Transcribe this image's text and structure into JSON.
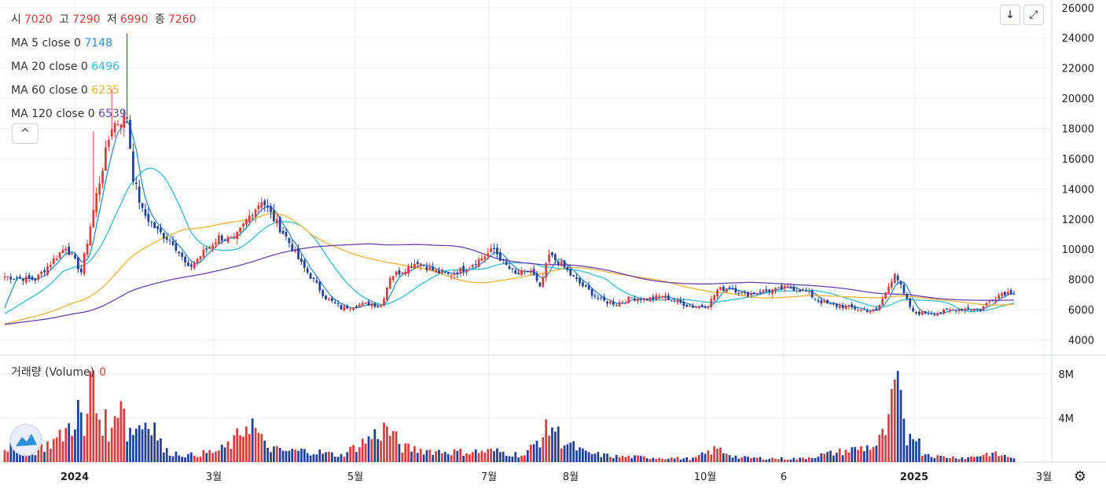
{
  "ohlc": {
    "open_label": "시",
    "open": "7020",
    "high_label": "고",
    "high": "7290",
    "low_label": "저",
    "low": "6990",
    "close_label": "종",
    "close": "7260"
  },
  "ma_legend": [
    {
      "label": "MA 5 close 0",
      "value": "7148",
      "color": "#2a8fdc"
    },
    {
      "label": "MA 20 close 0",
      "value": "6496",
      "color": "#2fbfd6"
    },
    {
      "label": "MA 60 close 0",
      "value": "6235",
      "color": "#f2b234"
    },
    {
      "label": "MA 120 close 0",
      "value": "6539",
      "color": "#6a3fb0"
    }
  ],
  "volume_legend": {
    "label": "거래량 (Volume)",
    "value": "0"
  },
  "buttons": {
    "collapse": "^",
    "download": "↓",
    "fullscreen": "⤢",
    "settings": "⚙"
  },
  "chart_data": {
    "type": "candlestick",
    "price_axis": {
      "ticks": [
        "26000",
        "24000",
        "22000",
        "20000",
        "18000",
        "16000",
        "14000",
        "12000",
        "10000",
        "8000",
        "6000",
        "4000"
      ],
      "ylim": [
        3300,
        26300
      ]
    },
    "volume_axis": {
      "ticks": [
        "8M",
        "4M"
      ],
      "ylim": [
        0,
        9000000
      ]
    },
    "x_tick_labels": [
      "2024",
      "3월",
      "5월",
      "7월",
      "8월",
      "10월",
      "6",
      "2025",
      "3월"
    ],
    "up_color": "#e03a3a",
    "down_color": "#1f3f9a",
    "ma_series": [
      {
        "name": "MA 5",
        "color": "#2a8fdc"
      },
      {
        "name": "MA 20",
        "color": "#2fbfd6"
      },
      {
        "name": "MA 60",
        "color": "#f2b234"
      },
      {
        "name": "MA 120",
        "color": "#6a3fb0"
      }
    ],
    "price_anchors_index_close": [
      [
        0,
        8200
      ],
      [
        10,
        8000
      ],
      [
        20,
        10200
      ],
      [
        25,
        8500
      ],
      [
        30,
        13600
      ],
      [
        35,
        18200
      ],
      [
        40,
        18800
      ],
      [
        42,
        14800
      ],
      [
        45,
        12500
      ],
      [
        50,
        11200
      ],
      [
        55,
        10500
      ],
      [
        60,
        8700
      ],
      [
        65,
        9800
      ],
      [
        70,
        10800
      ],
      [
        75,
        10600
      ],
      [
        80,
        12200
      ],
      [
        84,
        13300
      ],
      [
        88,
        12000
      ],
      [
        92,
        10800
      ],
      [
        97,
        9000
      ],
      [
        100,
        8200
      ],
      [
        105,
        6800
      ],
      [
        110,
        6100
      ],
      [
        115,
        6300
      ],
      [
        120,
        6400
      ],
      [
        123,
        6200
      ],
      [
        126,
        8200
      ],
      [
        130,
        8600
      ],
      [
        135,
        9200
      ],
      [
        140,
        8600
      ],
      [
        145,
        8300
      ],
      [
        150,
        8700
      ],
      [
        155,
        9300
      ],
      [
        160,
        10000
      ],
      [
        163,
        9100
      ],
      [
        167,
        8300
      ],
      [
        172,
        8600
      ],
      [
        175,
        7400
      ],
      [
        178,
        9600
      ],
      [
        182,
        9000
      ],
      [
        186,
        8100
      ],
      [
        190,
        7400
      ],
      [
        195,
        6600
      ],
      [
        200,
        6400
      ],
      [
        205,
        6800
      ],
      [
        210,
        6700
      ],
      [
        215,
        6900
      ],
      [
        220,
        6500
      ],
      [
        225,
        6200
      ],
      [
        230,
        6300
      ],
      [
        233,
        7300
      ],
      [
        237,
        7500
      ],
      [
        242,
        7000
      ],
      [
        247,
        7200
      ],
      [
        252,
        7300
      ],
      [
        257,
        7500
      ],
      [
        262,
        7200
      ],
      [
        266,
        6600
      ],
      [
        270,
        6300
      ],
      [
        275,
        6200
      ],
      [
        280,
        6000
      ],
      [
        285,
        5900
      ],
      [
        288,
        7100
      ],
      [
        291,
        8500
      ],
      [
        294,
        7000
      ],
      [
        297,
        5800
      ],
      [
        300,
        5800
      ],
      [
        305,
        5800
      ],
      [
        310,
        6000
      ],
      [
        315,
        6100
      ],
      [
        319,
        6000
      ],
      [
        322,
        6600
      ],
      [
        326,
        7100
      ],
      [
        330,
        7200
      ]
    ],
    "volume_anchors_index_millions": [
      [
        0,
        1.4
      ],
      [
        10,
        1.0
      ],
      [
        18,
        2.2
      ],
      [
        22,
        3.5
      ],
      [
        24,
        4.9
      ],
      [
        26,
        2.2
      ],
      [
        29,
        8.9
      ],
      [
        30,
        4.6
      ],
      [
        32,
        3.9
      ],
      [
        35,
        2.5
      ],
      [
        38,
        7.2
      ],
      [
        40,
        2.6
      ],
      [
        42,
        3.0
      ],
      [
        48,
        4.0
      ],
      [
        52,
        1.0
      ],
      [
        60,
        0.6
      ],
      [
        70,
        1.0
      ],
      [
        75,
        1.8
      ],
      [
        80,
        3.9
      ],
      [
        85,
        1.5
      ],
      [
        90,
        1.0
      ],
      [
        100,
        1.0
      ],
      [
        110,
        0.6
      ],
      [
        125,
        3.1
      ],
      [
        130,
        1.3
      ],
      [
        140,
        1.0
      ],
      [
        150,
        0.9
      ],
      [
        160,
        1.0
      ],
      [
        170,
        0.6
      ],
      [
        179,
        3.4
      ],
      [
        182,
        2.0
      ],
      [
        190,
        0.8
      ],
      [
        200,
        0.5
      ],
      [
        215,
        0.4
      ],
      [
        225,
        0.3
      ],
      [
        233,
        1.2
      ],
      [
        240,
        0.4
      ],
      [
        260,
        0.3
      ],
      [
        285,
        1.5
      ],
      [
        289,
        3.2
      ],
      [
        291,
        6.9
      ],
      [
        292,
        6.2
      ],
      [
        295,
        2.0
      ],
      [
        297,
        3.3
      ],
      [
        300,
        0.9
      ],
      [
        305,
        0.5
      ],
      [
        315,
        0.4
      ],
      [
        322,
        0.8
      ],
      [
        330,
        0.4
      ]
    ]
  }
}
